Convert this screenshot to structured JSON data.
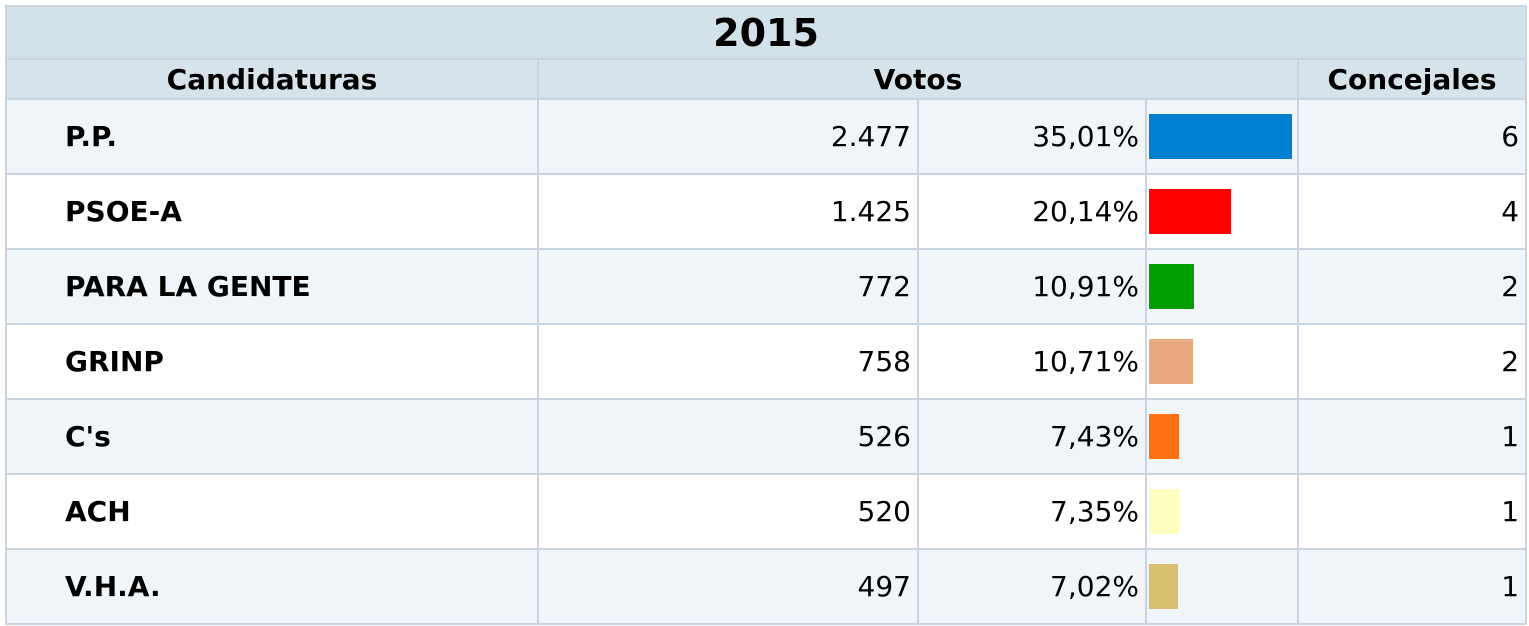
{
  "table": {
    "title": "2015",
    "headers": [
      "Candidaturas",
      "Votos",
      "Concejales"
    ],
    "rows": [
      {
        "name": "P.P.",
        "votes": "2.477",
        "percent": 35.01,
        "percent_label": "35,01%",
        "color": "#0080d0",
        "seats": 6
      },
      {
        "name": "PSOE-A",
        "votes": "1.425",
        "percent": 20.14,
        "percent_label": "20,14%",
        "color": "#ff0000",
        "seats": 4
      },
      {
        "name": "PARA LA GENTE",
        "votes": "772",
        "percent": 10.91,
        "percent_label": "10,91%",
        "color": "#00a000",
        "seats": 2
      },
      {
        "name": "GRINP",
        "votes": "758",
        "percent": 10.71,
        "percent_label": "10,71%",
        "color": "#e8a880",
        "seats": 2
      },
      {
        "name": "C's",
        "votes": "526",
        "percent": 7.43,
        "percent_label": "7,43%",
        "color": "#ff7014",
        "seats": 1
      },
      {
        "name": "ACH",
        "votes": "520",
        "percent": 7.35,
        "percent_label": "7,35%",
        "color": "#ffffc0",
        "seats": 1
      },
      {
        "name": "V.H.A.",
        "votes": "497",
        "percent": 7.02,
        "percent_label": "7,02%",
        "color": "#d8c070",
        "seats": 1
      }
    ]
  }
}
